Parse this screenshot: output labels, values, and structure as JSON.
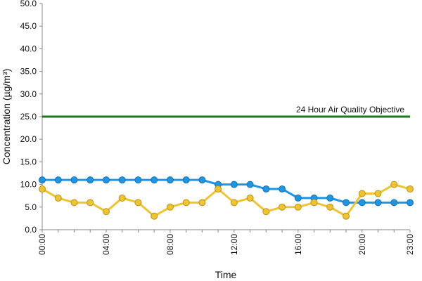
{
  "chart_data": {
    "type": "line",
    "xlabel": "Time",
    "ylabel": "Concentration (µg/m³)",
    "categories": [
      "00:00",
      null,
      null,
      null,
      "04:00",
      null,
      null,
      null,
      "08:00",
      null,
      null,
      null,
      "12:00",
      null,
      null,
      null,
      "16:00",
      null,
      null,
      null,
      "20:00",
      null,
      null,
      "23:00"
    ],
    "series": [
      {
        "color": "#1e96e6",
        "values": [
          11,
          11,
          11,
          11,
          11,
          11,
          11,
          11,
          11,
          11,
          11,
          10,
          10,
          10,
          9,
          9,
          7,
          7,
          7,
          6,
          6,
          6,
          6,
          6
        ]
      },
      {
        "color": "#f0c430",
        "values": [
          9,
          7,
          6,
          6,
          4,
          7,
          6,
          3,
          5,
          6,
          6,
          9,
          6,
          7,
          4,
          5,
          5,
          6,
          5,
          3,
          8,
          8,
          10,
          9
        ]
      }
    ],
    "annotation": {
      "text": "24 Hour Air Quality Objective",
      "value": 25,
      "color": "#1a7a1a"
    },
    "ylim": [
      0,
      50
    ],
    "yticks": [
      {
        "value": 0,
        "label": "0.0"
      },
      {
        "value": 5,
        "label": "5.0"
      },
      {
        "value": 10,
        "label": "10.0"
      },
      {
        "value": 15,
        "label": "15.0"
      },
      {
        "value": 20,
        "label": "20.0"
      },
      {
        "value": 25,
        "label": "25.0"
      },
      {
        "value": 30,
        "label": "30.0"
      },
      {
        "value": 35,
        "label": "35.0"
      },
      {
        "value": 40,
        "label": "40.0"
      },
      {
        "value": 45,
        "label": "45.0"
      },
      {
        "value": 50,
        "label": "50.0"
      }
    ]
  }
}
